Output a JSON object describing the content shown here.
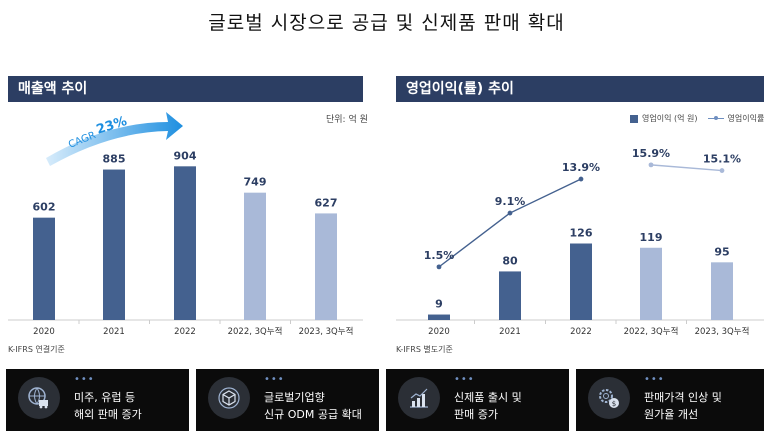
{
  "page": {
    "title": "글로벌 시장으로 공급 및 신제품 판매 확대"
  },
  "left_panel": {
    "header": "매출액 추이",
    "unit": "단위: 억 원",
    "footnote": "K-IFRS 연결기준",
    "cagr_label": "CAGR",
    "cagr_value": "23%"
  },
  "right_panel": {
    "header": "영업이익(률) 추이",
    "legend_bar": "영업이익 (억 원)",
    "legend_line": "영업이익률",
    "footnote": "K-IFRS 별도기준"
  },
  "chart_data": [
    {
      "type": "bar",
      "title": "매출액 추이",
      "categories": [
        "2020",
        "2021",
        "2022",
        "2022, 3Q누적",
        "2023, 3Q누적"
      ],
      "values": [
        602,
        885,
        904,
        749,
        627
      ],
      "value_labels": [
        "602",
        "885",
        "904",
        "749",
        "627"
      ],
      "ylim": [
        0,
        1000
      ],
      "colors": [
        "#44618f",
        "#44618f",
        "#44618f",
        "#a9b9d8",
        "#a9b9d8"
      ],
      "grid": false
    },
    {
      "type": "bar",
      "title": "영업이익(률) 추이",
      "categories": [
        "2020",
        "2021",
        "2022",
        "2022, 3Q누적",
        "2023, 3Q누적"
      ],
      "values": [
        9,
        80,
        126,
        119,
        95
      ],
      "value_labels": [
        "9",
        "80",
        "126",
        "119",
        "95"
      ],
      "ylim": [
        0,
        280
      ],
      "colors": [
        "#44618f",
        "#44618f",
        "#44618f",
        "#a9b9d8",
        "#a9b9d8"
      ],
      "line_series": {
        "values": [
          1.5,
          9.1,
          13.9,
          15.9,
          15.1
        ],
        "value_labels": [
          "1.5%",
          "9.1%",
          "13.9%",
          "15.9%",
          "15.1%"
        ],
        "ylim": [
          -6,
          18
        ],
        "segments": [
          [
            0,
            1,
            2
          ],
          [
            3,
            4
          ]
        ],
        "colors": [
          "#44618f",
          "#44618f",
          "#44618f",
          "#a9b9d8",
          "#a9b9d8"
        ]
      },
      "grid": false
    }
  ],
  "cards": [
    {
      "icon": "globe-truck-icon",
      "dots": "•••",
      "line1": "미주, 유럽 등",
      "line2": "해외 판매 증가"
    },
    {
      "icon": "cube-package-icon",
      "dots": "•••",
      "line1": "글로벌기업향",
      "line2": "신규 ODM 공급 확대"
    },
    {
      "icon": "growth-chart-icon",
      "dots": "•••",
      "line1": "신제품 출시 및",
      "line2": "판매 증가"
    },
    {
      "icon": "gear-coin-icon",
      "dots": "•••",
      "line1": "판매가격 인상 및",
      "line2": "원가율 개선"
    }
  ]
}
